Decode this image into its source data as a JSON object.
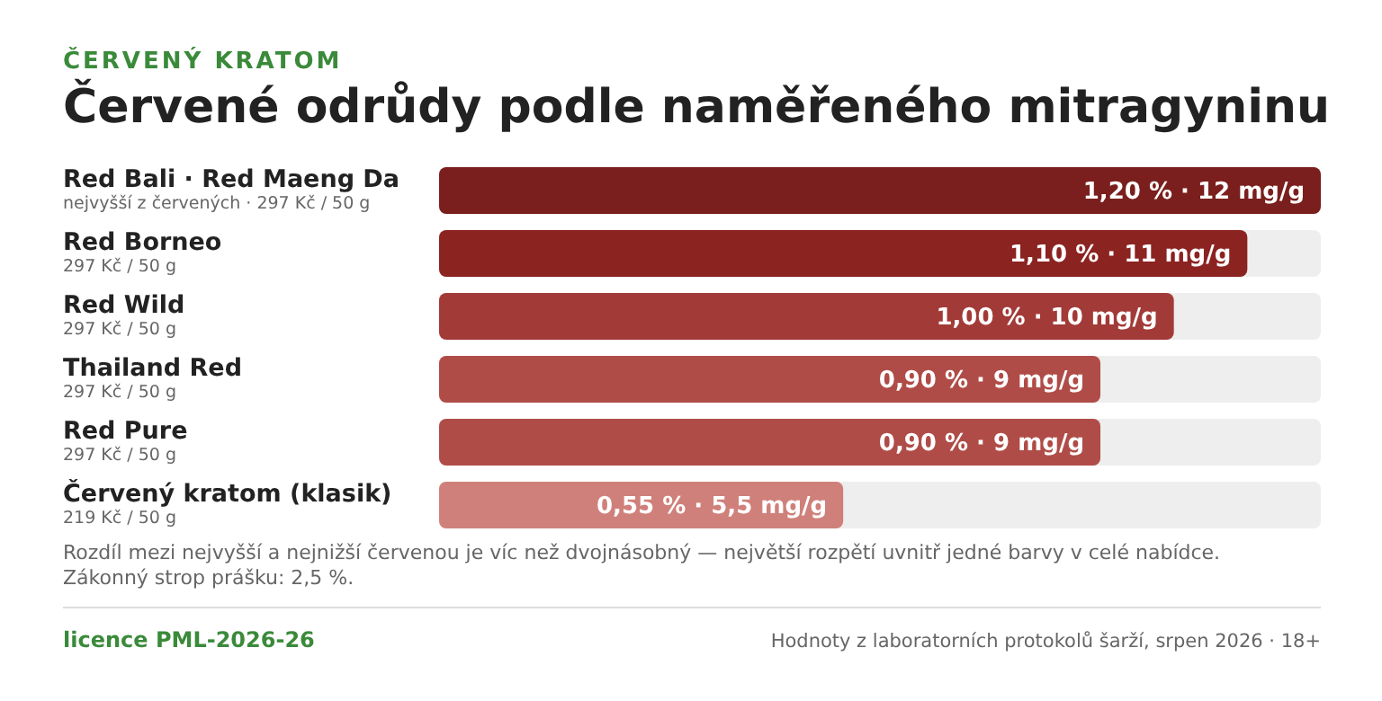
{
  "chart_data": {
    "type": "bar",
    "orientation": "horizontal",
    "subtitle": "ČERVENÝ KRATOM",
    "title": "Červené odrůdy podle naměřeného mitragyninu",
    "categories": [
      "Red Bali · Red Maeng Da",
      "Red Borneo",
      "Red Wild",
      "Thailand Red",
      "Red Pure",
      "Červený kratom (klasik)"
    ],
    "values": [
      1.2,
      1.1,
      1.0,
      0.9,
      0.9,
      0.55
    ],
    "colors": [
      "#7a1f1d",
      "#8b2321",
      "#a23a37",
      "#b04c47",
      "#b04c47",
      "#d0807a"
    ],
    "value_labels": [
      "1,20 % · 12 mg/g",
      "1,10 % · 11 mg/g",
      "1,00 % · 10 mg/g",
      "0,90 % · 9 mg/g",
      "0,90 % · 9 mg/g",
      "0,55 % · 5,5 mg/g"
    ],
    "annotations": [
      "nejvyšší z červených · 297 Kč / 50 g",
      "297 Kč / 50 g",
      "297 Kč / 50 g",
      "297 Kč / 50 g",
      "297 Kč / 50 g",
      "219 Kč / 50 g",
      "Rozdíl mezi nejvyšší a nejnižší červenou je víc než dvojnásobný — největší rozpětí uvnitř jedné barvy v celé nabídce. Zákonný strop prášku: 2,5 %.",
      "licence PML-2026-26",
      "Hodnoty z laboratorních protokolů šarží, srpen 2026 · 18+"
    ]
  }
}
